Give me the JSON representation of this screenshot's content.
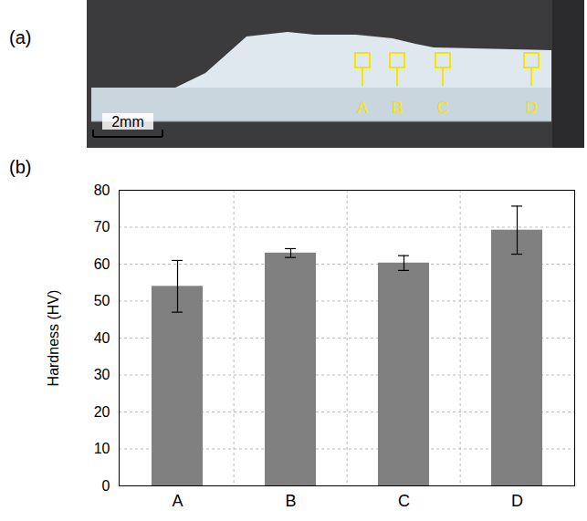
{
  "panels": [
    "(a)",
    "(b)"
  ],
  "image_panel": {
    "scale_bar": "2mm",
    "markers": [
      "A",
      "B",
      "C",
      "D"
    ]
  },
  "chart_data": {
    "type": "bar",
    "y_label": "Hardness (HV)",
    "categories": [
      "A",
      "B",
      "C",
      "D"
    ],
    "values": [
      54,
      63,
      60.3,
      69.2
    ],
    "errors": [
      7,
      1.2,
      2,
      6.5
    ],
    "color": "#808080",
    "ylim": [
      0,
      80
    ],
    "yticks": [
      0,
      10,
      20,
      30,
      40,
      50,
      60,
      70,
      80
    ],
    "grid": true
  }
}
